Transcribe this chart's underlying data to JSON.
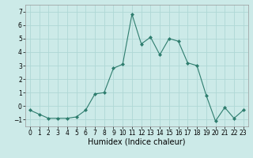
{
  "x": [
    0,
    1,
    2,
    3,
    4,
    5,
    6,
    7,
    8,
    9,
    10,
    11,
    12,
    13,
    14,
    15,
    16,
    17,
    18,
    19,
    20,
    21,
    22,
    23
  ],
  "y": [
    -0.3,
    -0.6,
    -0.9,
    -0.9,
    -0.9,
    -0.8,
    -0.3,
    0.9,
    1.0,
    2.8,
    3.1,
    6.8,
    4.6,
    5.1,
    3.8,
    5.0,
    4.8,
    3.2,
    3.0,
    0.8,
    -1.1,
    -0.1,
    -0.9,
    -0.3
  ],
  "line_color": "#2e7d6e",
  "marker": "D",
  "marker_size": 2.0,
  "bg_color": "#cceae8",
  "grid_color": "#afd8d5",
  "xlabel": "Humidex (Indice chaleur)",
  "ylim": [
    -1.5,
    7.5
  ],
  "xlim": [
    -0.5,
    23.5
  ],
  "yticks": [
    -1,
    0,
    1,
    2,
    3,
    4,
    5,
    6,
    7
  ],
  "xticks": [
    0,
    1,
    2,
    3,
    4,
    5,
    6,
    7,
    8,
    9,
    10,
    11,
    12,
    13,
    14,
    15,
    16,
    17,
    18,
    19,
    20,
    21,
    22,
    23
  ],
  "tick_fontsize": 5.5,
  "xlabel_fontsize": 7.0,
  "linewidth": 0.8
}
